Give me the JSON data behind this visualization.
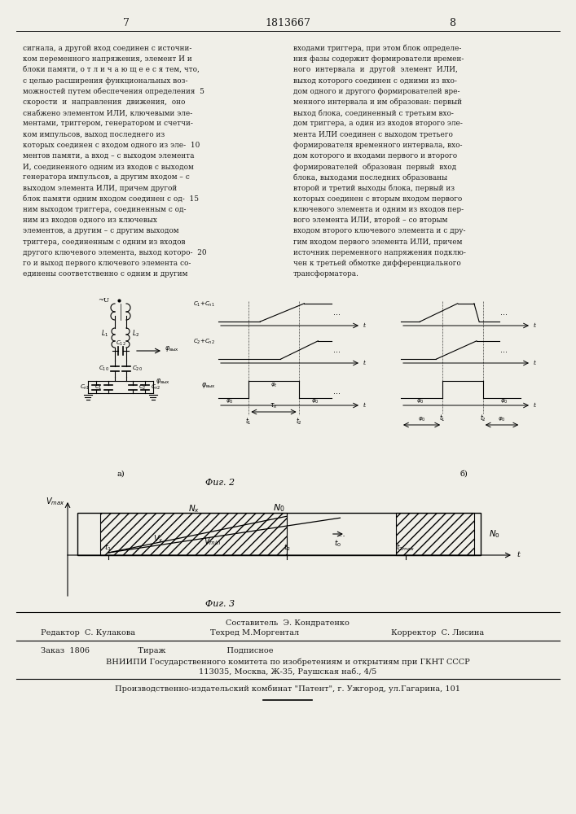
{
  "page_number_left": "7",
  "page_number_center": "1813667",
  "page_number_right": "8",
  "bg_color": "#f0efe8",
  "text_color": "#1a1a1a",
  "left_column_text": [
    "сигнала, а другой вход соединен с источни-",
    "ком переменного напряжения, элемент И и",
    "блоки памяти, о т л и ч а ю щ е е с я тем, что,",
    "с целью расширения функциональных воз-",
    "можностей путем обеспечения определения  5",
    "скорости  и  направления  движения,  оно",
    "снабжено элементом ИЛИ, ключевыми эле-",
    "ментами, триггером, генератором и счетчи-",
    "ком импульсов, выход последнего из",
    "которых соединен с входом одного из эле-  10",
    "ментов памяти, а вход – с выходом элемента",
    "И, соединенного одним из входов с выходом",
    "генератора импульсов, а другим входом – с",
    "выходом элемента ИЛИ, причем другой",
    "блок памяти одним входом соединен с од-  15",
    "ним выходом триггера, соединенным с од-",
    "ним из входов одного из ключевых",
    "элементов, а другим – с другим выходом",
    "триггера, соединенным с одним из входов",
    "другого ключевого элемента, выход которо-  20",
    "го и выход первого ключевого элемента со-",
    "единены соответственно с одним и другим"
  ],
  "right_column_text": [
    "входами триггера, при этом блок определе-",
    "ния фазы содержит формирователи времен-",
    "ного  интервала  и  другой  элемент  ИЛИ,",
    "выход которого соединен с одними из вхо-",
    "дом одного и другого формирователей вре-",
    "менного интервала и им образован: первый",
    "выход блока, соединенный с третьим вхо-",
    "дом триггера, а один из входов второго эле-",
    "мента ИЛИ соединен с выходом третьего",
    "формирователя временного интервала, вхо-",
    "дом которого и входами первого и второго",
    "формирователей  образован  первый  вход",
    "блока, выходами последних образованы",
    "второй и третий выходы блока, первый из",
    "которых соединен с вторым входом первого",
    "ключевого элемента и одним из входов пер-",
    "вого элемента ИЛИ, второй – со вторым",
    "входом второго ключевого элемента и с дру-",
    "гим входом первого элемента ИЛИ, причем",
    "источник переменного напряжения подклю-",
    "чен к третьей обмотке дифференциального",
    "трансформатора."
  ],
  "fig2_caption": "Фиг. 2",
  "fig3_caption": "Фиг. 3",
  "editor_line": "Редактор  С. Кулакова",
  "composer_line": "Составитель  Э. Кондратенко",
  "techred_line": "Техред М.Моргентал",
  "corrector_line": "Корректор  С. Лисина",
  "order_line": "Заказ  1806                   Тираж                        Подписное",
  "vnipi_line1": "ВНИИПИ Государственного комитета по изобретениям и открытиям при ГКНТ СССР",
  "vnipi_line2": "113035, Москва, Ж-35, Раушская наб., 4/5",
  "patent_line": "Производственно-издательский комбинат \"Патент\", г. Ужгород, ул.Гагарина, 101"
}
